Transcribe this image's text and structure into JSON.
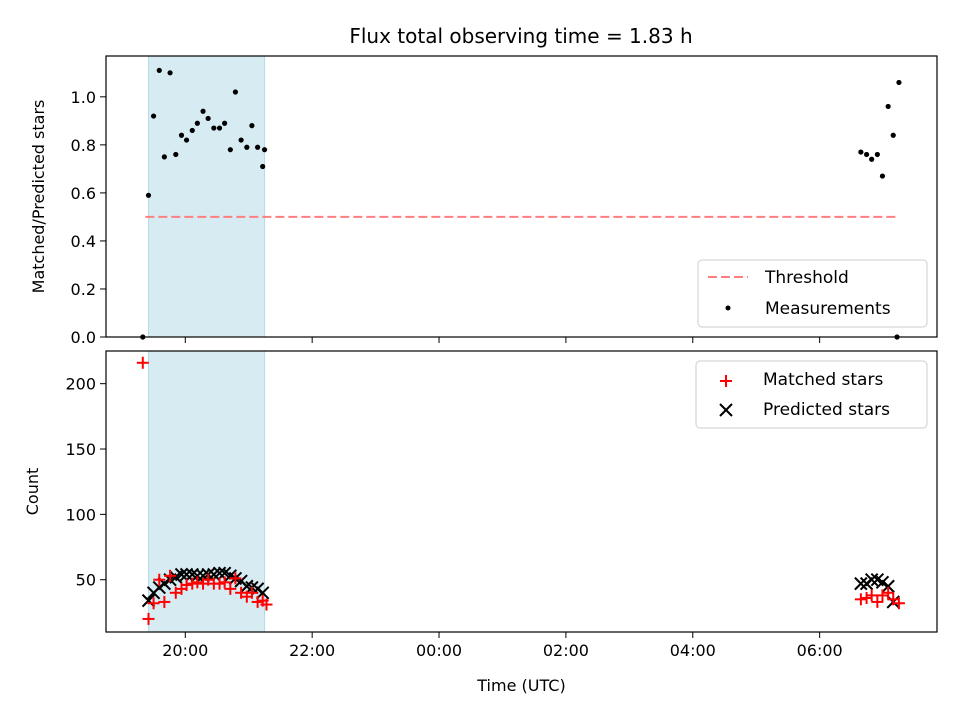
{
  "figure": {
    "title": "Flux total observing time = 1.83 h"
  },
  "chart_data": [
    {
      "type": "scatter",
      "panel": "top",
      "title": "Flux total observing time = 1.83 h",
      "xlabel": "",
      "ylabel": "Matched/Predicted stars",
      "x_unit": "hours UTC (24+ = next day)",
      "xlim": [
        18.75,
        31.85
      ],
      "ylim": [
        0.0,
        1.17
      ],
      "yticks": [
        0.0,
        0.2,
        0.4,
        0.6,
        0.8,
        1.0
      ],
      "yticklabels": [
        "0.0",
        "0.2",
        "0.4",
        "0.6",
        "0.8",
        "1.0"
      ],
      "xticks": [
        20,
        22,
        24,
        26,
        28,
        30
      ],
      "xticklabels": [
        "",
        "",
        "",
        "",
        "",
        ""
      ],
      "shaded_interval": {
        "x": [
          19.42,
          21.25
        ],
        "color": "#add8e6"
      },
      "legend": {
        "position": "lower-right",
        "entries": [
          "Threshold",
          "Measurements"
        ]
      },
      "series": [
        {
          "name": "Threshold",
          "kind": "dashed-line",
          "color": "#ff7f7f",
          "x": [
            19.37,
            31.2
          ],
          "y": [
            0.5,
            0.5
          ]
        },
        {
          "name": "Measurements",
          "kind": "points",
          "color": "#000000",
          "x": [
            19.33,
            19.42,
            19.5,
            19.59,
            19.67,
            19.76,
            19.85,
            19.94,
            20.02,
            20.11,
            20.19,
            20.28,
            20.36,
            20.45,
            20.54,
            20.62,
            20.71,
            20.79,
            20.88,
            20.97,
            21.05,
            21.14,
            21.22,
            30.65,
            30.74,
            30.82,
            30.91,
            30.99,
            31.08,
            31.16,
            31.25
          ],
          "y": [
            0.0,
            0.59,
            0.92,
            1.11,
            0.75,
            1.1,
            0.76,
            0.84,
            0.82,
            0.86,
            0.89,
            0.94,
            0.91,
            0.87,
            0.87,
            0.89,
            0.78,
            1.02,
            0.82,
            0.79,
            0.88,
            0.79,
            0.71,
            0.77,
            0.76,
            0.74,
            0.76,
            0.67,
            0.96,
            0.84,
            1.06
          ]
        },
        {
          "name": "",
          "kind": "points",
          "color": "#000000",
          "x": [
            21.25,
            31.22
          ],
          "y": [
            0.78,
            0.0
          ]
        }
      ]
    },
    {
      "type": "scatter",
      "panel": "bottom",
      "xlabel": "Time (UTC)",
      "ylabel": "Count",
      "x_unit": "hours UTC (24+ = next day)",
      "xlim": [
        18.75,
        31.85
      ],
      "ylim": [
        10,
        225
      ],
      "yticks": [
        50,
        100,
        150,
        200
      ],
      "yticklabels": [
        "50",
        "100",
        "150",
        "200"
      ],
      "xticks": [
        20,
        22,
        24,
        26,
        28,
        30
      ],
      "xticklabels": [
        "20:00",
        "22:00",
        "00:00",
        "02:00",
        "04:00",
        "06:00"
      ],
      "shaded_interval": {
        "x": [
          19.42,
          21.25
        ],
        "color": "#add8e6"
      },
      "legend": {
        "position": "upper-right",
        "entries": [
          "Matched stars",
          "Predicted stars"
        ]
      },
      "series": [
        {
          "name": "Matched stars",
          "kind": "plus",
          "color": "#ff0000",
          "x": [
            19.33,
            19.42,
            19.5,
            19.59,
            19.67,
            19.76,
            19.85,
            19.94,
            20.02,
            20.11,
            20.19,
            20.28,
            20.36,
            20.45,
            20.54,
            20.62,
            20.71,
            20.79,
            20.88,
            20.97,
            21.05,
            21.14,
            21.22,
            21.28,
            30.65,
            30.74,
            30.82,
            30.91,
            30.99,
            31.08,
            31.16,
            31.25
          ],
          "y": [
            216,
            20,
            32,
            50,
            33,
            53,
            40,
            43,
            46,
            47,
            48,
            47,
            50,
            47,
            47,
            48,
            43,
            51,
            40,
            37,
            40,
            33,
            34,
            31,
            35,
            36,
            38,
            33,
            38,
            40,
            35,
            32
          ]
        },
        {
          "name": "Predicted stars",
          "kind": "x",
          "color": "#000000",
          "x": [
            19.42,
            19.5,
            19.59,
            19.67,
            19.76,
            19.85,
            19.94,
            20.02,
            20.11,
            20.19,
            20.28,
            20.36,
            20.45,
            20.54,
            20.62,
            20.71,
            20.79,
            20.88,
            20.97,
            21.05,
            21.14,
            21.22,
            30.65,
            30.74,
            30.82,
            30.91,
            30.99,
            31.08,
            31.16
          ],
          "y": [
            34,
            40,
            44,
            47,
            50,
            52,
            54,
            54,
            54,
            53,
            53,
            54,
            54,
            55,
            55,
            53,
            51,
            49,
            45,
            44,
            43,
            40,
            47,
            47,
            50,
            50,
            48,
            45,
            33
          ]
        }
      ]
    }
  ]
}
